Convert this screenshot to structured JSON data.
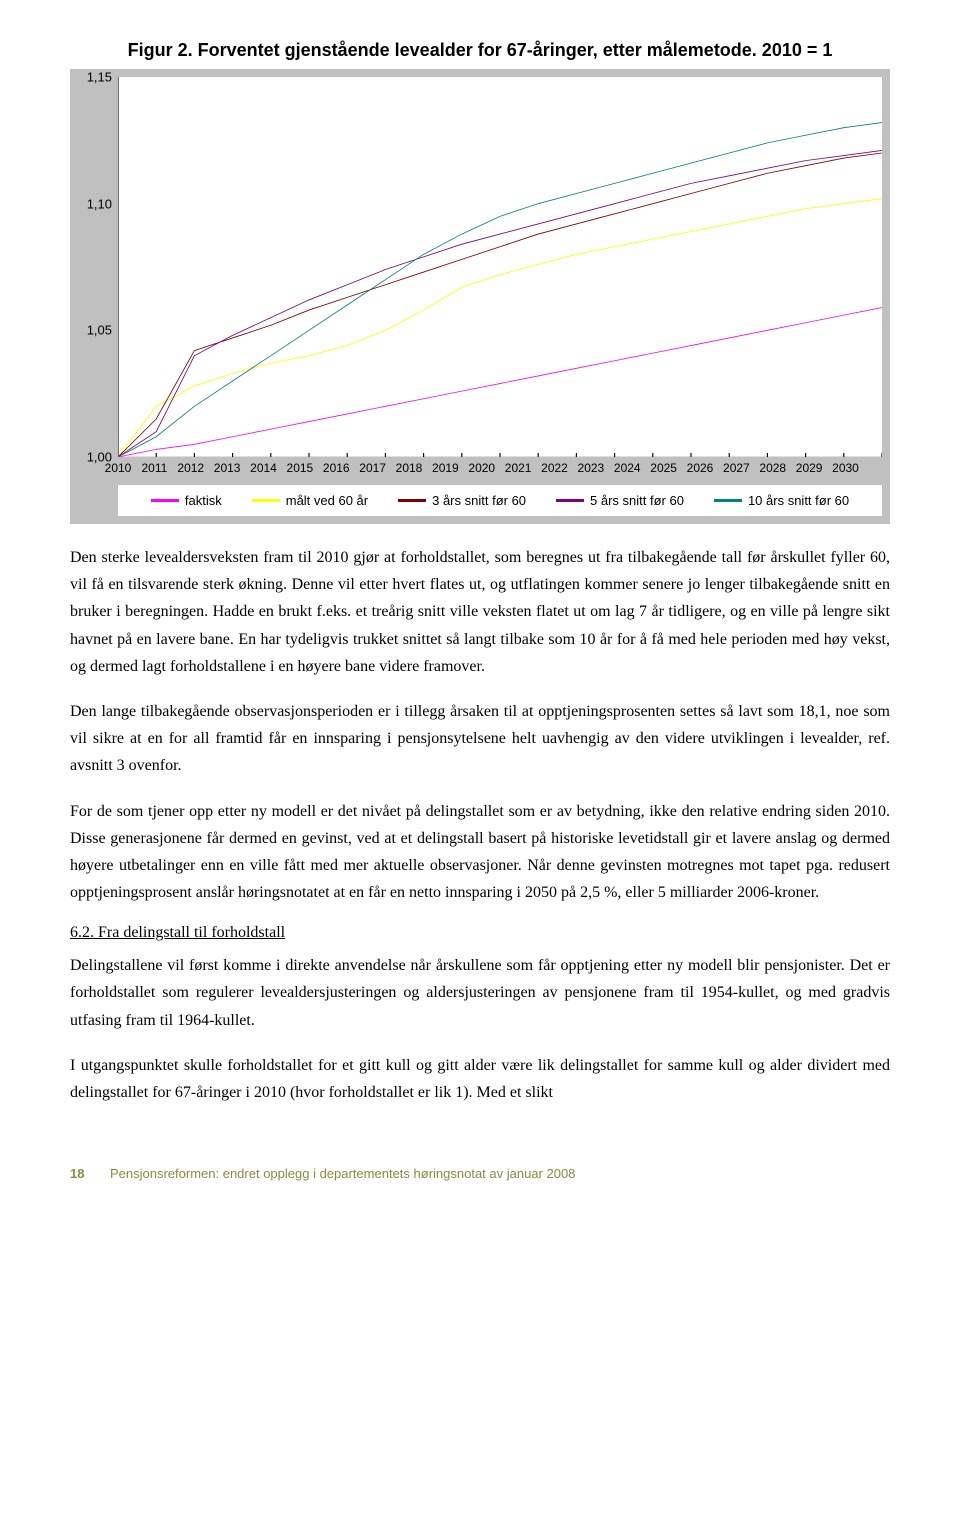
{
  "chart": {
    "title": "Figur 2. Forventet gjenstående levealder for 67-åringer, etter målemetode. 2010 = 1",
    "title_fontsize": 18,
    "background_color": "#c0c0c0",
    "plot_background_color": "#ffffff",
    "ylim": [
      1.0,
      1.15
    ],
    "yticks": [
      1.0,
      1.05,
      1.1,
      1.15
    ],
    "xlim": [
      2010,
      2030
    ],
    "xticks": [
      2010,
      2011,
      2012,
      2013,
      2014,
      2015,
      2016,
      2017,
      2018,
      2019,
      2020,
      2021,
      2022,
      2023,
      2024,
      2025,
      2026,
      2027,
      2028,
      2029,
      2030
    ],
    "line_width": 2.5,
    "series": [
      {
        "name": "faktisk",
        "label": "faktisk",
        "color": "#ff00ff",
        "values": [
          1.0,
          1.003,
          1.005,
          1.008,
          1.011,
          1.014,
          1.017,
          1.02,
          1.023,
          1.026,
          1.029,
          1.032,
          1.035,
          1.038,
          1.041,
          1.044,
          1.047,
          1.05,
          1.053,
          1.056,
          1.059
        ]
      },
      {
        "name": "malt60",
        "label": "målt ved 60 år",
        "color": "#ffff00",
        "values": [
          1.0,
          1.02,
          1.028,
          1.033,
          1.037,
          1.04,
          1.044,
          1.05,
          1.058,
          1.067,
          1.072,
          1.076,
          1.08,
          1.083,
          1.086,
          1.089,
          1.092,
          1.095,
          1.098,
          1.1,
          1.102
        ]
      },
      {
        "name": "snitt3",
        "label": "3 års snitt før 60",
        "color": "#800000",
        "values": [
          1.0,
          1.015,
          1.042,
          1.047,
          1.052,
          1.058,
          1.063,
          1.068,
          1.073,
          1.078,
          1.083,
          1.088,
          1.092,
          1.096,
          1.1,
          1.104,
          1.108,
          1.112,
          1.115,
          1.118,
          1.12
        ]
      },
      {
        "name": "snitt5",
        "label": "5 års snitt før 60",
        "color": "#800080",
        "values": [
          1.0,
          1.01,
          1.04,
          1.048,
          1.055,
          1.062,
          1.068,
          1.074,
          1.079,
          1.084,
          1.088,
          1.092,
          1.096,
          1.1,
          1.104,
          1.108,
          1.111,
          1.114,
          1.117,
          1.119,
          1.121
        ]
      },
      {
        "name": "snitt10",
        "label": "10 års snitt før 60",
        "color": "#008080",
        "values": [
          1.0,
          1.008,
          1.02,
          1.03,
          1.04,
          1.05,
          1.06,
          1.07,
          1.08,
          1.088,
          1.095,
          1.1,
          1.104,
          1.108,
          1.112,
          1.116,
          1.12,
          1.124,
          1.127,
          1.13,
          1.132
        ]
      }
    ]
  },
  "paragraphs": {
    "p1": "Den sterke levealdersveksten fram til 2010 gjør at forholdstallet, som beregnes ut fra tilbakegående tall før årskullet fyller 60, vil få en tilsvarende sterk økning. Denne vil etter hvert flates ut, og utflatingen kommer senere jo lenger tilbakegående snitt en bruker i beregningen. Hadde en brukt f.eks. et treårig snitt ville veksten flatet ut om lag 7 år tidligere, og en ville på lengre sikt havnet på en lavere bane. En har tydeligvis trukket snittet så langt tilbake som 10 år for å få med hele perioden med høy vekst, og dermed lagt forholdstallene i en høyere bane videre framover.",
    "p2": "Den lange tilbakegående observasjonsperioden er i tillegg årsaken til at opptjeningsprosenten settes så lavt som 18,1, noe som vil sikre at en for all framtid får en innsparing i pensjonsytelsene helt uavhengig av den videre utviklingen i levealder, ref. avsnitt 3 ovenfor.",
    "p3": "For de som tjener opp etter ny modell er det nivået på delingstallet som er av betydning, ikke den relative endring siden 2010. Disse generasjonene får dermed en gevinst, ved at et delingstall basert på historiske levetidstall gir et lavere anslag og dermed høyere utbetalinger enn en ville fått med mer aktuelle observasjoner. Når denne gevinsten motregnes mot tapet pga. redusert opptjeningsprosent anslår høringsnotatet at en får en netto innsparing i 2050 på 2,5 %, eller 5 milliarder 2006-kroner.",
    "section": "6.2. Fra delingstall til forholdstall",
    "p4": "Delingstallene vil først komme i direkte anvendelse når årskullene som får opptjening etter ny modell blir pensjonister. Det er forholdstallet som regulerer levealdersjusteringen og aldersjusteringen av pensjonene fram til 1954-kullet, og med gradvis utfasing fram til 1964-kullet.",
    "p5": "I utgangspunktet skulle forholdstallet for et gitt kull og gitt alder være lik delingstallet for samme kull og alder dividert med delingstallet for 67-åringer i 2010 (hvor forholdstallet er lik 1). Med et slikt"
  },
  "footer": {
    "page": "18",
    "text": "Pensjonsreformen: endret opplegg i departementets høringsnotat av januar 2008"
  }
}
